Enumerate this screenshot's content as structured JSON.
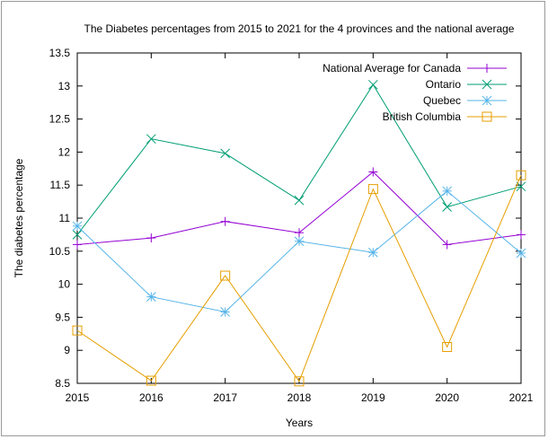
{
  "chart_data": {
    "type": "line",
    "title": "The Diabetes percentages from 2015 to 2021 for the 4 provinces and the national average",
    "xlabel": "Years",
    "ylabel": "The diabetes percentage",
    "categories": [
      "2015",
      "2016",
      "2017",
      "2018",
      "2019",
      "2020",
      "2021"
    ],
    "xlim": [
      2015,
      2021
    ],
    "ylim": [
      8.5,
      13.5
    ],
    "yticks": [
      "8.5",
      "9",
      "9.5",
      "10",
      "10.5",
      "11",
      "11.5",
      "12",
      "12.5",
      "13",
      "13.5"
    ],
    "grid": false,
    "legend_position": "top-right",
    "series": [
      {
        "name": "National Average for Canada",
        "color": "#9400d3",
        "marker": "plus",
        "values": [
          10.6,
          10.7,
          10.95,
          10.78,
          11.7,
          10.6,
          10.75
        ]
      },
      {
        "name": "Ontario",
        "color": "#009e73",
        "marker": "cross",
        "values": [
          10.75,
          12.2,
          11.98,
          11.27,
          13.02,
          11.17,
          11.48
        ]
      },
      {
        "name": "Quebec",
        "color": "#56b4e9",
        "marker": "asterisk",
        "values": [
          10.88,
          9.81,
          9.58,
          10.65,
          10.48,
          11.41,
          10.47
        ]
      },
      {
        "name": "British Columbia",
        "color": "#e69f00",
        "marker": "square",
        "values": [
          9.3,
          8.54,
          10.13,
          8.53,
          11.44,
          9.05,
          11.65
        ]
      }
    ]
  }
}
